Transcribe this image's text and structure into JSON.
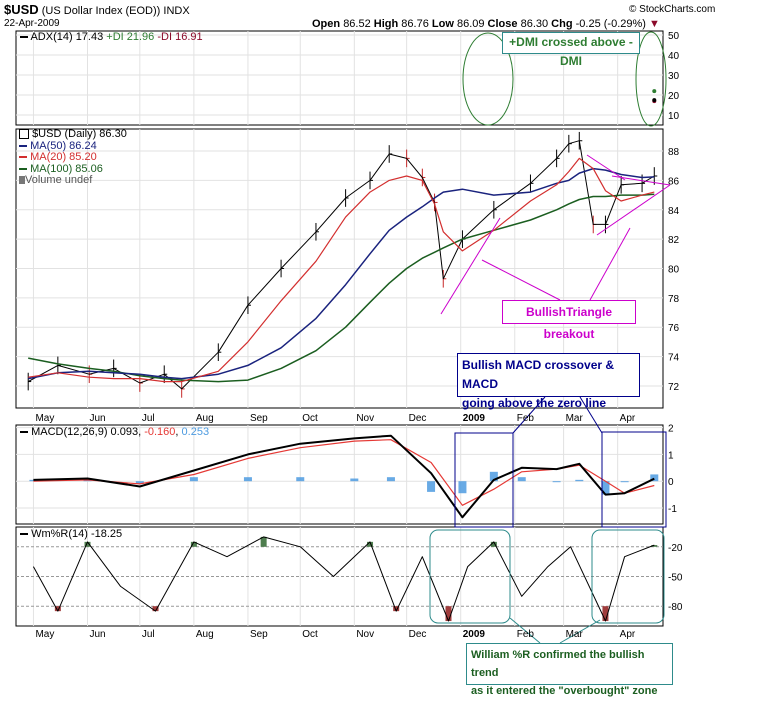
{
  "header": {
    "symbol": "$USD",
    "name": "(US Dollar Index (EOD))",
    "exchange": "INDX",
    "date": "22-Apr-2009",
    "copyright": "© StockCharts.com",
    "open_label": "Open",
    "open": "86.52",
    "high_label": "High",
    "high": "86.76",
    "low_label": "Low",
    "low": "86.09",
    "close_label": "Close",
    "close": "86.30",
    "chg_label": "Chg",
    "chg": "-0.25 (-0.29%)"
  },
  "colors": {
    "adx": "#000000",
    "pdi": "#2e7d32",
    "mdi": "#8b0a2a",
    "ma50": "#1a237e",
    "ma20": "#d32f2f",
    "ma100": "#1b5e20",
    "macd": "#000000",
    "signal": "#e53935",
    "histogram": "#4d9be0",
    "willr": "#000000",
    "overbought_fill": "#4e7d4e",
    "oversold_fill": "#a03c3c",
    "annot_blue": "#00008b",
    "annot_teal": "#2e8b8b",
    "annot_magenta": "#cc00cc",
    "callout_text_green": "#1b5e20"
  },
  "chart_data": [
    {
      "type": "line",
      "panel": "adx",
      "legend": "ADX(14) 17.43 +DI 21.96 -DI 16.91",
      "legend_parts": [
        "ADX(14) 17.43",
        "+DI 21.96",
        "-DI 16.91"
      ],
      "ylim": [
        5,
        52
      ],
      "yticks": [
        10,
        20,
        30,
        40,
        50
      ],
      "x": [
        "2009-04-22"
      ],
      "series": [
        {
          "name": "ADX(14)",
          "values": [
            17.43
          ]
        },
        {
          "name": "+DI",
          "values": [
            21.96
          ]
        },
        {
          "name": "-DI",
          "values": [
            16.91
          ]
        }
      ]
    },
    {
      "type": "line",
      "panel": "price",
      "legend": [
        "$USD (Daily) 86.30",
        "MA(50) 86.24",
        "MA(20) 85.20",
        "MA(100) 85.06",
        "Volume undef"
      ],
      "ylim": [
        70.5,
        89.5
      ],
      "yticks": [
        72,
        74,
        76,
        78,
        80,
        82,
        84,
        86,
        88
      ],
      "x": [
        "2008-04-28",
        "2008-05-15",
        "2008-06-02",
        "2008-06-16",
        "2008-07-01",
        "2008-07-15",
        "2008-07-25",
        "2008-08-15",
        "2008-09-01",
        "2008-09-20",
        "2008-10-10",
        "2008-10-27",
        "2008-11-10",
        "2008-11-21",
        "2008-12-01",
        "2008-12-10",
        "2008-12-17",
        "2008-12-22",
        "2009-01-02",
        "2009-01-20",
        "2009-02-10",
        "2009-02-25",
        "2009-03-04",
        "2009-03-10",
        "2009-03-18",
        "2009-03-25",
        "2009-04-03",
        "2009-04-15",
        "2009-04-22"
      ],
      "series": [
        {
          "name": "$USD (Daily)",
          "values": [
            72.3,
            73.4,
            72.8,
            73.2,
            72.2,
            72.8,
            71.8,
            74.3,
            77.5,
            80.0,
            82.5,
            84.8,
            86.0,
            87.8,
            87.5,
            86.2,
            84.5,
            79.3,
            82.0,
            84.0,
            85.8,
            87.5,
            88.5,
            88.7,
            83.0,
            83.0,
            85.7,
            85.8,
            86.3
          ]
        },
        {
          "name": "MA(50)",
          "values": [
            72.5,
            72.9,
            73.0,
            72.9,
            72.8,
            72.6,
            72.5,
            72.8,
            73.4,
            74.6,
            76.6,
            78.9,
            81.0,
            82.6,
            83.5,
            84.2,
            84.8,
            85.2,
            85.4,
            85.0,
            85.2,
            85.8,
            86.0,
            86.5,
            86.8,
            86.7,
            86.4,
            86.2,
            86.24
          ]
        },
        {
          "name": "MA(20)",
          "values": [
            72.6,
            72.9,
            72.6,
            72.5,
            72.5,
            72.3,
            72.3,
            73.0,
            75.0,
            77.8,
            80.5,
            83.5,
            85.2,
            86.0,
            86.3,
            86.0,
            84.4,
            82.5,
            81.2,
            82.6,
            84.6,
            85.7,
            86.6,
            87.5,
            86.8,
            85.3,
            84.6,
            85.0,
            85.2
          ]
        },
        {
          "name": "MA(100)",
          "values": [
            73.9,
            73.5,
            73.2,
            73.0,
            72.7,
            72.5,
            72.4,
            72.3,
            72.4,
            73.2,
            74.4,
            76.0,
            77.7,
            79.0,
            80.0,
            80.7,
            81.1,
            81.4,
            82.0,
            82.6,
            83.3,
            84.0,
            84.4,
            84.7,
            84.9,
            84.9,
            85.0,
            85.0,
            85.06
          ]
        }
      ]
    },
    {
      "type": "line",
      "panel": "macd",
      "legend": [
        "MACD(12,26,9)",
        "0.093",
        "-0.160",
        "0.253"
      ],
      "ylim": [
        -1.6,
        2.1
      ],
      "yticks": [
        -1,
        0,
        1,
        2
      ],
      "x": [
        "2008-05-01",
        "2008-06-01",
        "2008-07-01",
        "2008-08-01",
        "2008-09-01",
        "2008-10-01",
        "2008-11-01",
        "2008-11-22",
        "2008-12-15",
        "2009-01-02",
        "2009-01-20",
        "2009-02-05",
        "2009-02-25",
        "2009-03-10",
        "2009-03-25",
        "2009-04-05",
        "2009-04-22"
      ],
      "series": [
        {
          "name": "MACD(12,26,9)",
          "values": [
            0.05,
            0.1,
            -0.2,
            0.4,
            1.0,
            1.4,
            1.6,
            1.7,
            0.3,
            -1.35,
            0.05,
            0.5,
            0.45,
            0.65,
            -0.5,
            -0.45,
            0.093
          ]
        },
        {
          "name": "Signal",
          "values": [
            0.0,
            0.05,
            -0.1,
            0.25,
            0.85,
            1.25,
            1.5,
            1.55,
            0.7,
            -0.9,
            -0.3,
            0.35,
            0.45,
            0.6,
            0.0,
            -0.45,
            -0.16
          ]
        },
        {
          "name": "Histogram",
          "values": [
            0.05,
            0.05,
            -0.1,
            0.15,
            0.15,
            0.15,
            0.1,
            0.15,
            -0.4,
            -0.45,
            0.35,
            0.15,
            0.0,
            0.05,
            -0.5,
            0.0,
            0.253
          ]
        }
      ]
    },
    {
      "type": "line",
      "panel": "williams",
      "legend": "Wm%R(14) -18.25",
      "ylim": [
        -100,
        0
      ],
      "yticks": [
        -20,
        -50,
        -80
      ],
      "x": [
        "2008-05-01",
        "2008-05-15",
        "2008-06-01",
        "2008-06-20",
        "2008-07-10",
        "2008-08-01",
        "2008-08-20",
        "2008-09-10",
        "2008-10-01",
        "2008-10-20",
        "2008-11-10",
        "2008-11-25",
        "2008-12-10",
        "2008-12-25",
        "2009-01-05",
        "2009-01-20",
        "2009-02-05",
        "2009-02-20",
        "2009-03-05",
        "2009-03-25",
        "2009-04-05",
        "2009-04-22"
      ],
      "series": [
        {
          "name": "Wm%R(14)",
          "values": [
            -40,
            -85,
            -15,
            -60,
            -85,
            -15,
            -30,
            -10,
            -20,
            -50,
            -15,
            -85,
            -30,
            -95,
            -40,
            -15,
            -70,
            -40,
            -20,
            -95,
            -30,
            -18.25
          ]
        }
      ]
    }
  ],
  "x_axis": {
    "top_labels": [
      "May",
      "Jun",
      "Jul",
      "Aug",
      "Sep",
      "Oct",
      "Nov",
      "Dec",
      "2009",
      "Feb",
      "Mar",
      "Apr"
    ],
    "bottom_labels": [
      "May",
      "Jun",
      "Jul",
      "Aug",
      "Sep",
      "Oct",
      "Nov",
      "Dec",
      "2009",
      "Feb",
      "Mar",
      "Apr"
    ]
  },
  "annotations": {
    "dmi": "+DMI crossed above -DMI",
    "triangle": "BullishTriangle breakout",
    "macd_line1": "Bullish MACD crossover & MACD",
    "macd_line2": "going  above the zero line",
    "willr_line1": "William %R confirmed the bullish trend",
    "willr_line2": "as it entered the \"overbought\" zone"
  }
}
